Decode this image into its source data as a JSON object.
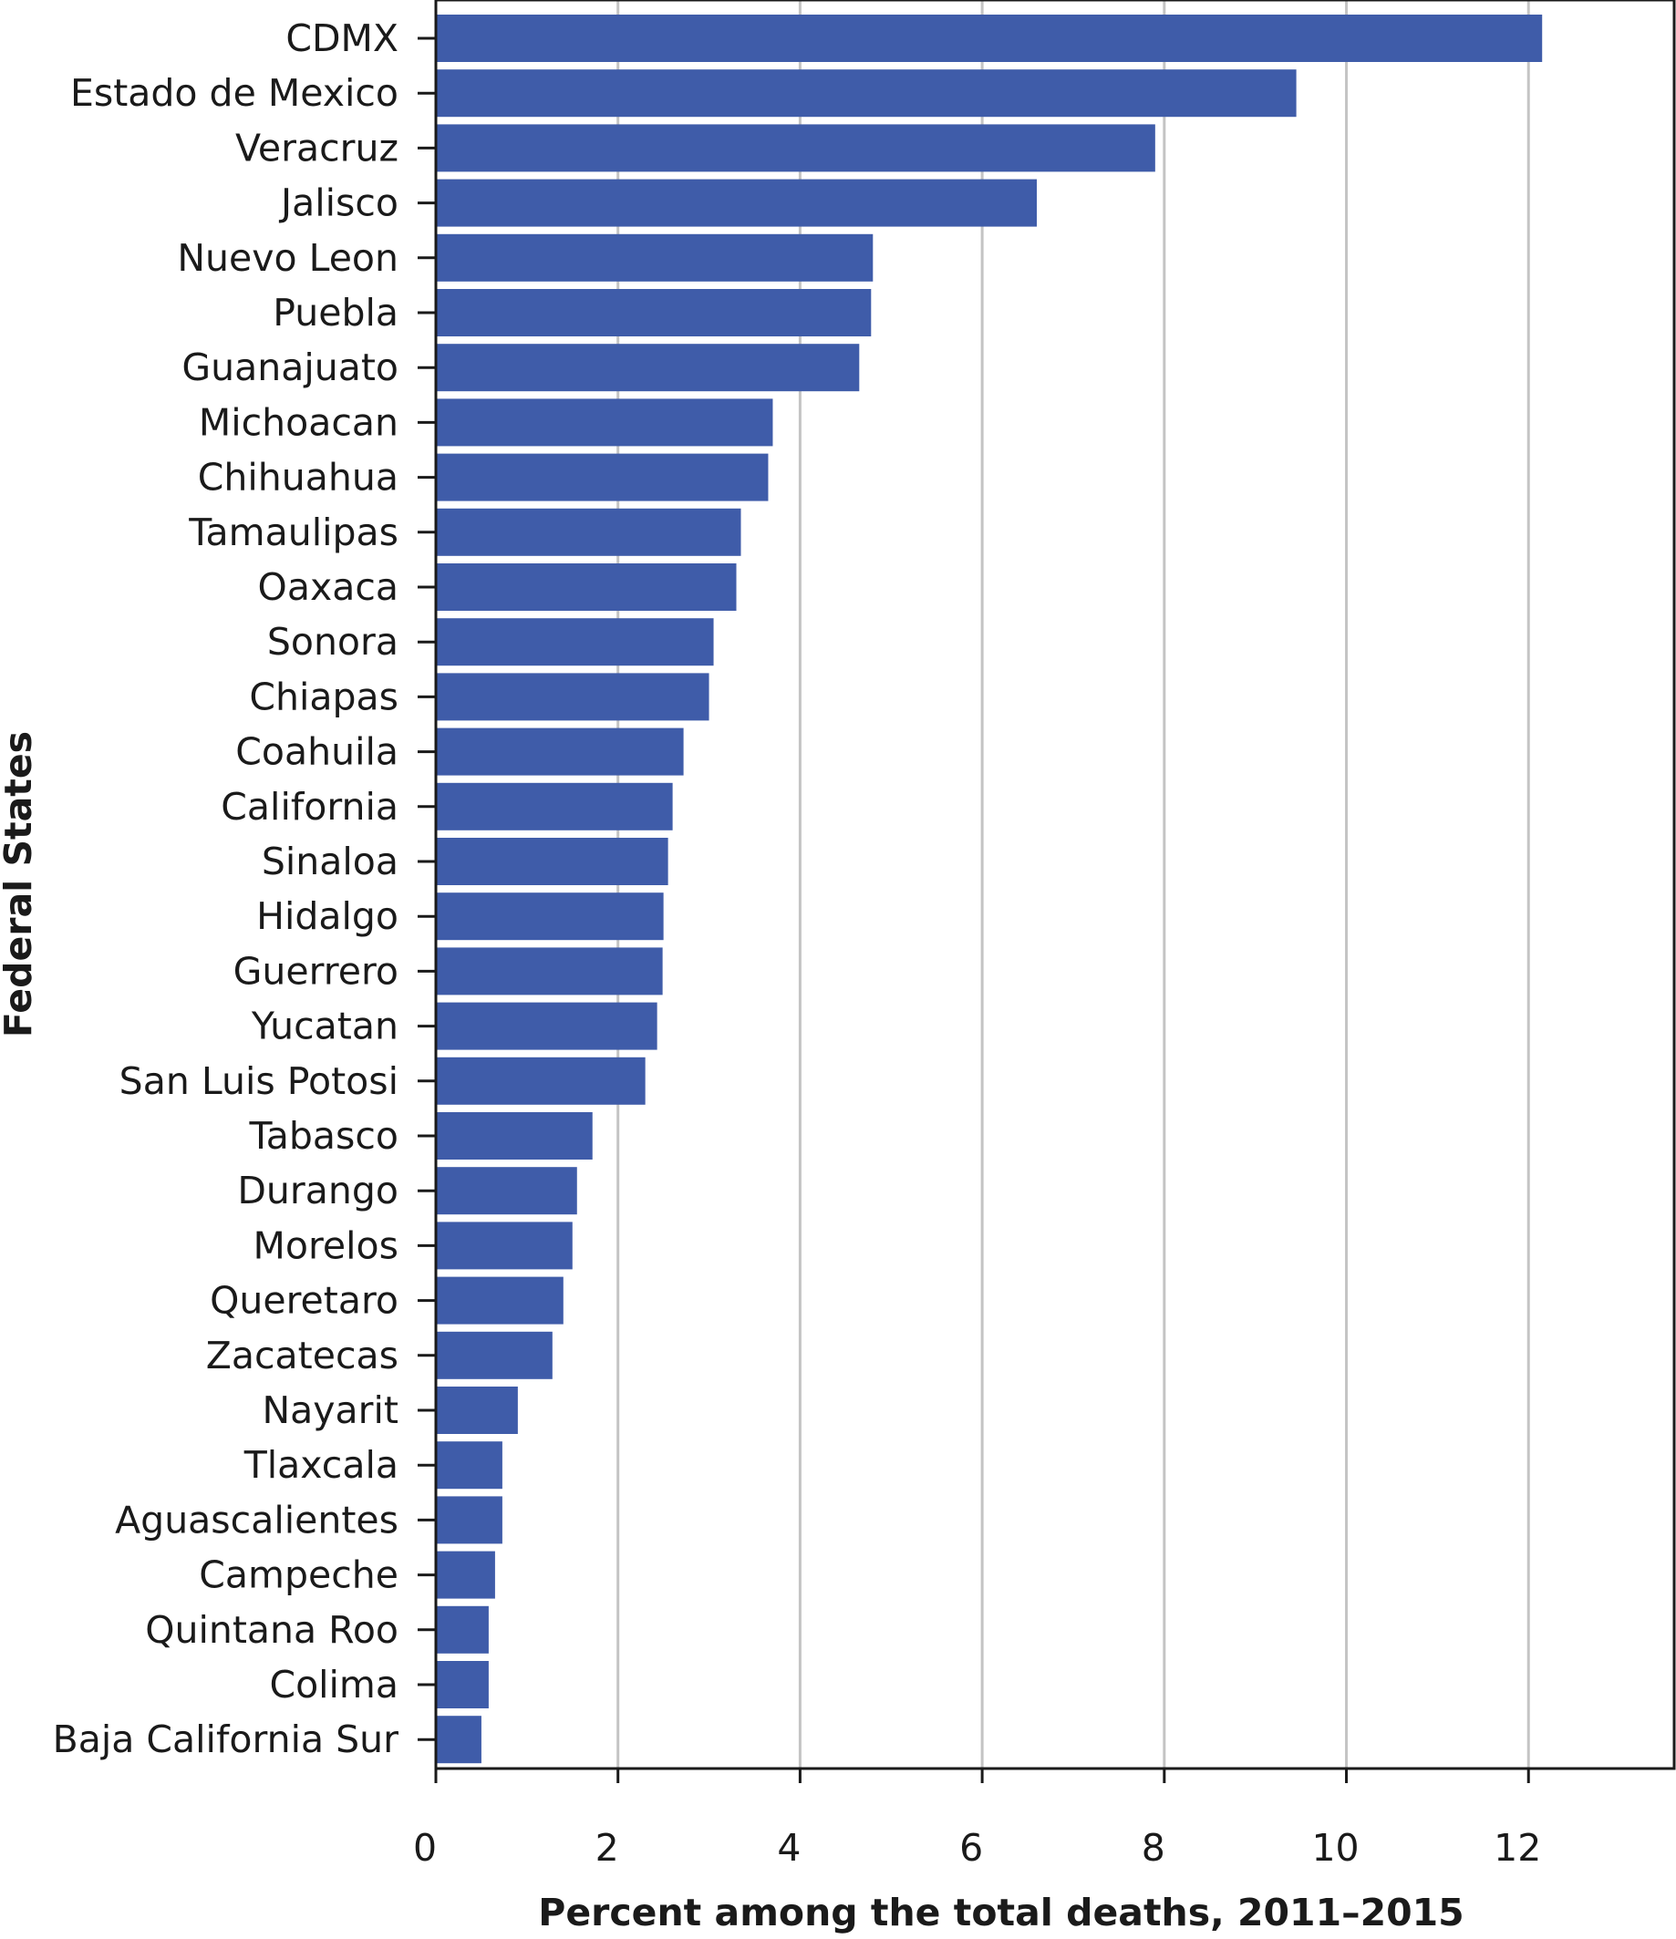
{
  "chart_data": {
    "type": "bar",
    "orientation": "horizontal",
    "title": "",
    "xlabel": "Percent among the total deaths, 2011–2015",
    "ylabel": "Federal States",
    "xlim": [
      0,
      13.6
    ],
    "xticks": [
      0,
      2,
      4,
      6,
      8,
      10,
      12
    ],
    "grid": "vertical",
    "bar_color": "#3f5ca9",
    "categories": [
      "CDMX",
      "Estado de Mexico",
      "Veracruz",
      "Jalisco",
      "Nuevo Leon",
      "Puebla",
      "Guanajuato",
      "Michoacan",
      "Chihuahua",
      "Tamaulipas",
      "Oaxaca",
      "Sonora",
      "Chiapas",
      "Coahuila",
      "California",
      "Sinaloa",
      "Hidalgo",
      "Guerrero",
      "Yucatan",
      "San Luis Potosi",
      "Tabasco",
      "Durango",
      "Morelos",
      "Queretaro",
      "Zacatecas",
      "Nayarit",
      "Tlaxcala",
      "Aguascalientes",
      "Campeche",
      "Quintana Roo",
      "Colima",
      "Baja California Sur"
    ],
    "values": [
      12.15,
      9.45,
      7.9,
      6.6,
      4.8,
      4.78,
      4.65,
      3.7,
      3.65,
      3.35,
      3.3,
      3.05,
      3.0,
      2.72,
      2.6,
      2.55,
      2.5,
      2.49,
      2.43,
      2.3,
      1.72,
      1.55,
      1.5,
      1.4,
      1.28,
      0.9,
      0.73,
      0.73,
      0.65,
      0.58,
      0.58,
      0.5
    ]
  }
}
